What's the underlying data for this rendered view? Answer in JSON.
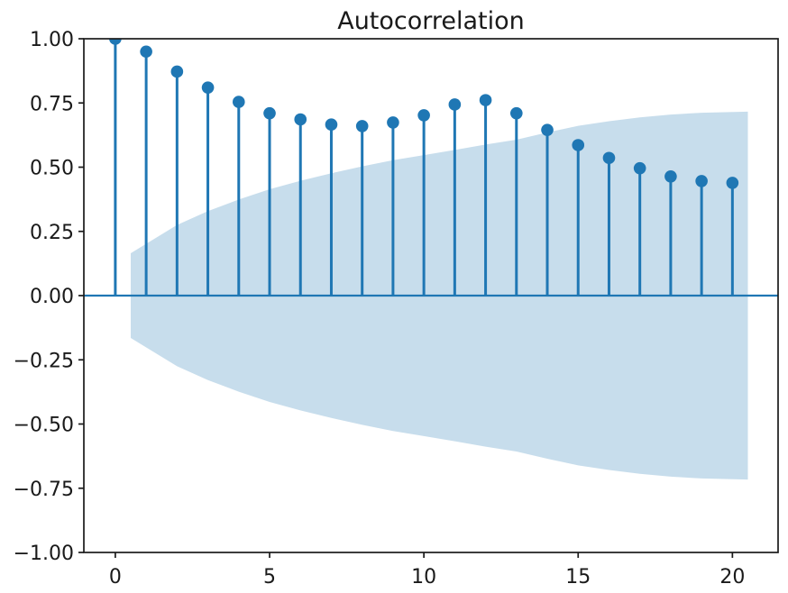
{
  "figure": {
    "title": "Autocorrelation"
  },
  "colors": {
    "series": "#1f77b4",
    "band_fill": "rgba(31,119,180,0.25)",
    "zero_line": "#1f77b4",
    "axis": "#1a1a1a",
    "text": "#1a1a1a",
    "background": "#ffffff"
  },
  "chart_data": {
    "type": "stem",
    "title": "Autocorrelation",
    "xlabel": "",
    "ylabel": "",
    "legend": null,
    "grid": false,
    "x": [
      0,
      1,
      2,
      3,
      4,
      5,
      6,
      7,
      8,
      9,
      10,
      11,
      12,
      13,
      14,
      15,
      16,
      17,
      18,
      19,
      20
    ],
    "values": [
      1.0,
      0.95,
      0.872,
      0.81,
      0.754,
      0.71,
      0.686,
      0.666,
      0.66,
      0.674,
      0.702,
      0.744,
      0.761,
      0.71,
      0.645,
      0.586,
      0.536,
      0.496,
      0.464,
      0.446,
      0.439
    ],
    "confidence_band": {
      "x": [
        0.5,
        2,
        3,
        4,
        5,
        6,
        7,
        8,
        9,
        10,
        11,
        12,
        13,
        14,
        15,
        16,
        17,
        18,
        19,
        20.5
      ],
      "upper": [
        0.165,
        0.275,
        0.329,
        0.374,
        0.414,
        0.447,
        0.476,
        0.503,
        0.527,
        0.547,
        0.567,
        0.588,
        0.607,
        0.635,
        0.661,
        0.679,
        0.694,
        0.705,
        0.712,
        0.716
      ],
      "lower": [
        -0.165,
        -0.275,
        -0.329,
        -0.374,
        -0.414,
        -0.447,
        -0.476,
        -0.503,
        -0.527,
        -0.547,
        -0.567,
        -0.588,
        -0.607,
        -0.635,
        -0.661,
        -0.679,
        -0.694,
        -0.705,
        -0.712,
        -0.716
      ]
    },
    "zero_line": 0,
    "xlim": [
      -1.02,
      21.48
    ],
    "ylim": [
      -1.0,
      1.0
    ],
    "xticks": [
      0,
      5,
      10,
      15,
      20
    ],
    "xtick_labels": [
      "0",
      "5",
      "10",
      "15",
      "20"
    ],
    "yticks": [
      -1.0,
      -0.75,
      -0.5,
      -0.25,
      0.0,
      0.25,
      0.5,
      0.75,
      1.0
    ],
    "ytick_labels": [
      "−1.00",
      "−0.75",
      "−0.50",
      "−0.25",
      "0.00",
      "0.25",
      "0.50",
      "0.75",
      "1.00"
    ]
  }
}
